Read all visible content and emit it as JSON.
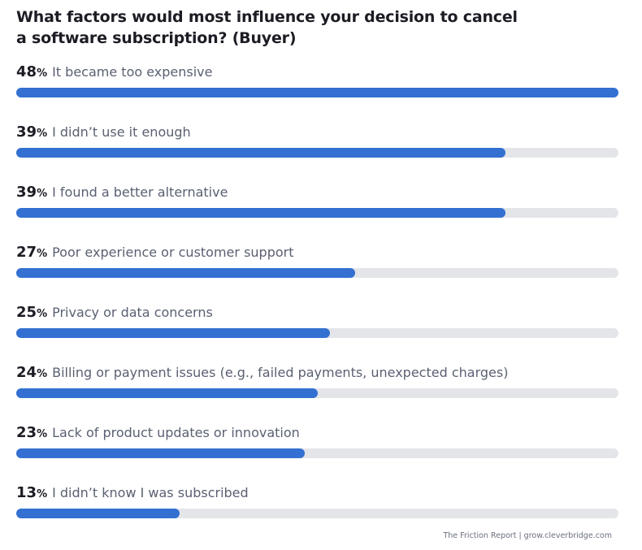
{
  "chart_data": {
    "type": "bar",
    "orientation": "horizontal",
    "title": "What factors would most influence your decision to cancel a software subscription? (Buyer)",
    "categories": [
      "It became too expensive",
      "I didn’t use it enough",
      "I found a better alternative",
      "Poor experience or customer support",
      "Privacy or data concerns",
      "Billing or payment issues (e.g., failed payments, unexpected charges)",
      "Lack of product updates or innovation",
      "I didn’t know I was subscribed"
    ],
    "values": [
      48,
      39,
      39,
      27,
      25,
      24,
      23,
      13
    ],
    "value_labels": [
      "48",
      "39",
      "39",
      "27",
      "25",
      "24",
      "23",
      "13"
    ],
    "unit": "%",
    "xlim": [
      0,
      48
    ],
    "grid": false,
    "colors": {
      "bar": "#3370d1",
      "track": "#e4e5e9"
    }
  },
  "footer": "The Friction Report  |  grow.cleverbridge.com"
}
